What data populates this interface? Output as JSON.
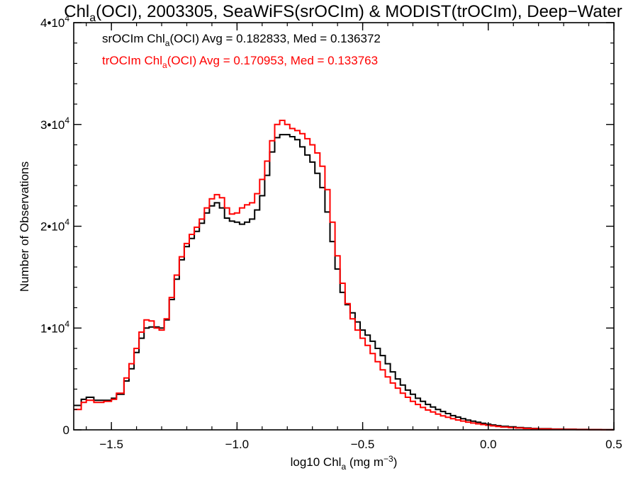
{
  "chart_data": {
    "type": "line",
    "step": true,
    "title": {
      "pre": "Chl",
      "sub": "a",
      "post": "(OCI), 2003305, SeaWiFS(srOCIm) & MODIST(trOCIm), Deep−Water"
    },
    "xlabel": {
      "pre": "log10 Chl",
      "sub": "a",
      "post": " (mg m",
      "sup": "−3",
      "end": ")"
    },
    "ylabel": "Number of Observations",
    "xlim": [
      -1.65,
      0.5
    ],
    "ylim": [
      0,
      40000
    ],
    "x_ticks": [
      {
        "value": -1.5,
        "label": "−1.5"
      },
      {
        "value": -1.0,
        "label": "−1.0"
      },
      {
        "value": -0.5,
        "label": "−0.5"
      },
      {
        "value": 0.0,
        "label": "0.0"
      },
      {
        "value": 0.5,
        "label": "0.5"
      }
    ],
    "y_ticks": [
      {
        "value": 0,
        "mant": "0",
        "exp": ""
      },
      {
        "value": 10000,
        "mant": "1•10",
        "exp": "4"
      },
      {
        "value": 20000,
        "mant": "2•10",
        "exp": "4"
      },
      {
        "value": 30000,
        "mant": "3•10",
        "exp": "4"
      },
      {
        "value": 40000,
        "mant": "4•10",
        "exp": "4"
      }
    ],
    "annotations": [
      {
        "pre": "srOCIm Chl",
        "sub": "a",
        "post": "(OCI) Avg = 0.182833, Med = 0.136372",
        "color": "#000000"
      },
      {
        "pre": "trOCIm Chl",
        "sub": "a",
        "post": "(OCI) Avg = 0.170953, Med = 0.133763",
        "color": "#ff0000"
      }
    ],
    "series": [
      {
        "color": "#000000",
        "points": [
          [
            -1.65,
            2400
          ],
          [
            -1.62,
            3000
          ],
          [
            -1.6,
            3200
          ],
          [
            -1.57,
            2900
          ],
          [
            -1.53,
            2900
          ],
          [
            -1.5,
            3100
          ],
          [
            -1.48,
            3500
          ],
          [
            -1.45,
            4800
          ],
          [
            -1.43,
            6000
          ],
          [
            -1.41,
            7600
          ],
          [
            -1.39,
            9000
          ],
          [
            -1.37,
            10000
          ],
          [
            -1.35,
            10100
          ],
          [
            -1.33,
            10100
          ],
          [
            -1.31,
            10000
          ],
          [
            -1.29,
            10800
          ],
          [
            -1.27,
            12800
          ],
          [
            -1.25,
            14800
          ],
          [
            -1.23,
            16700
          ],
          [
            -1.21,
            18000
          ],
          [
            -1.19,
            18800
          ],
          [
            -1.17,
            19500
          ],
          [
            -1.15,
            20300
          ],
          [
            -1.13,
            21300
          ],
          [
            -1.11,
            22000
          ],
          [
            -1.09,
            22300
          ],
          [
            -1.07,
            21800
          ],
          [
            -1.05,
            20800
          ],
          [
            -1.03,
            20500
          ],
          [
            -1.01,
            20400
          ],
          [
            -0.99,
            20200
          ],
          [
            -0.97,
            20400
          ],
          [
            -0.95,
            20700
          ],
          [
            -0.93,
            21600
          ],
          [
            -0.91,
            23000
          ],
          [
            -0.89,
            25000
          ],
          [
            -0.87,
            27300
          ],
          [
            -0.85,
            28700
          ],
          [
            -0.83,
            29000
          ],
          [
            -0.81,
            29000
          ],
          [
            -0.79,
            28800
          ],
          [
            -0.77,
            28500
          ],
          [
            -0.75,
            27800
          ],
          [
            -0.73,
            27000
          ],
          [
            -0.71,
            26300
          ],
          [
            -0.69,
            25200
          ],
          [
            -0.67,
            23800
          ],
          [
            -0.65,
            21400
          ],
          [
            -0.63,
            18500
          ],
          [
            -0.61,
            15800
          ],
          [
            -0.59,
            13500
          ],
          [
            -0.57,
            12300
          ],
          [
            -0.55,
            11500
          ],
          [
            -0.53,
            10600
          ],
          [
            -0.51,
            9800
          ],
          [
            -0.49,
            9300
          ],
          [
            -0.47,
            8700
          ],
          [
            -0.45,
            8000
          ],
          [
            -0.43,
            7300
          ],
          [
            -0.41,
            6500
          ],
          [
            -0.39,
            5700
          ],
          [
            -0.37,
            5000
          ],
          [
            -0.35,
            4400
          ],
          [
            -0.33,
            3900
          ],
          [
            -0.31,
            3500
          ],
          [
            -0.29,
            3100
          ],
          [
            -0.27,
            2800
          ],
          [
            -0.25,
            2500
          ],
          [
            -0.23,
            2250
          ],
          [
            -0.21,
            2000
          ],
          [
            -0.19,
            1800
          ],
          [
            -0.17,
            1600
          ],
          [
            -0.15,
            1400
          ],
          [
            -0.13,
            1250
          ],
          [
            -0.11,
            1100
          ],
          [
            -0.09,
            950
          ],
          [
            -0.07,
            850
          ],
          [
            -0.05,
            750
          ],
          [
            -0.03,
            650
          ],
          [
            -0.01,
            560
          ],
          [
            0.01,
            480
          ],
          [
            0.03,
            410
          ],
          [
            0.05,
            350
          ],
          [
            0.08,
            290
          ],
          [
            0.11,
            230
          ],
          [
            0.14,
            180
          ],
          [
            0.17,
            140
          ],
          [
            0.2,
            110
          ],
          [
            0.25,
            80
          ],
          [
            0.3,
            60
          ],
          [
            0.35,
            40
          ],
          [
            0.4,
            25
          ],
          [
            0.45,
            15
          ],
          [
            0.5,
            5
          ]
        ]
      },
      {
        "color": "#ff0000",
        "points": [
          [
            -1.65,
            2000
          ],
          [
            -1.62,
            2700
          ],
          [
            -1.6,
            2900
          ],
          [
            -1.57,
            2700
          ],
          [
            -1.53,
            2800
          ],
          [
            -1.5,
            3000
          ],
          [
            -1.48,
            3600
          ],
          [
            -1.45,
            5100
          ],
          [
            -1.43,
            6500
          ],
          [
            -1.41,
            8000
          ],
          [
            -1.39,
            9600
          ],
          [
            -1.37,
            10800
          ],
          [
            -1.35,
            10700
          ],
          [
            -1.33,
            10000
          ],
          [
            -1.31,
            9800
          ],
          [
            -1.29,
            10900
          ],
          [
            -1.27,
            13000
          ],
          [
            -1.25,
            15200
          ],
          [
            -1.23,
            17000
          ],
          [
            -1.21,
            18300
          ],
          [
            -1.19,
            19200
          ],
          [
            -1.17,
            19900
          ],
          [
            -1.15,
            20700
          ],
          [
            -1.13,
            21800
          ],
          [
            -1.11,
            22700
          ],
          [
            -1.09,
            23100
          ],
          [
            -1.07,
            22800
          ],
          [
            -1.05,
            21800
          ],
          [
            -1.03,
            21200
          ],
          [
            -1.01,
            21300
          ],
          [
            -0.99,
            21800
          ],
          [
            -0.97,
            22100
          ],
          [
            -0.95,
            22300
          ],
          [
            -0.93,
            23200
          ],
          [
            -0.91,
            24600
          ],
          [
            -0.89,
            26400
          ],
          [
            -0.87,
            28400
          ],
          [
            -0.85,
            30000
          ],
          [
            -0.83,
            30400
          ],
          [
            -0.81,
            30000
          ],
          [
            -0.79,
            29600
          ],
          [
            -0.77,
            29400
          ],
          [
            -0.75,
            29100
          ],
          [
            -0.73,
            28600
          ],
          [
            -0.71,
            28000
          ],
          [
            -0.69,
            27200
          ],
          [
            -0.67,
            25900
          ],
          [
            -0.65,
            23600
          ],
          [
            -0.63,
            20400
          ],
          [
            -0.61,
            17100
          ],
          [
            -0.59,
            14400
          ],
          [
            -0.57,
            12400
          ],
          [
            -0.55,
            10900
          ],
          [
            -0.53,
            9800
          ],
          [
            -0.51,
            9000
          ],
          [
            -0.49,
            8300
          ],
          [
            -0.47,
            7500
          ],
          [
            -0.45,
            6700
          ],
          [
            -0.43,
            5900
          ],
          [
            -0.41,
            5200
          ],
          [
            -0.39,
            4600
          ],
          [
            -0.37,
            4100
          ],
          [
            -0.35,
            3600
          ],
          [
            -0.33,
            3200
          ],
          [
            -0.31,
            2800
          ],
          [
            -0.29,
            2500
          ],
          [
            -0.27,
            2200
          ],
          [
            -0.25,
            1950
          ],
          [
            -0.23,
            1750
          ],
          [
            -0.21,
            1550
          ],
          [
            -0.19,
            1380
          ],
          [
            -0.17,
            1230
          ],
          [
            -0.15,
            1100
          ],
          [
            -0.13,
            970
          ],
          [
            -0.11,
            860
          ],
          [
            -0.09,
            760
          ],
          [
            -0.07,
            670
          ],
          [
            -0.05,
            590
          ],
          [
            -0.03,
            520
          ],
          [
            -0.01,
            450
          ],
          [
            0.01,
            390
          ],
          [
            0.03,
            330
          ],
          [
            0.05,
            280
          ],
          [
            0.08,
            230
          ],
          [
            0.11,
            180
          ],
          [
            0.14,
            140
          ],
          [
            0.17,
            110
          ],
          [
            0.2,
            85
          ],
          [
            0.25,
            60
          ],
          [
            0.3,
            40
          ],
          [
            0.35,
            28
          ],
          [
            0.4,
            18
          ],
          [
            0.45,
            10
          ],
          [
            0.5,
            4
          ]
        ]
      }
    ]
  }
}
